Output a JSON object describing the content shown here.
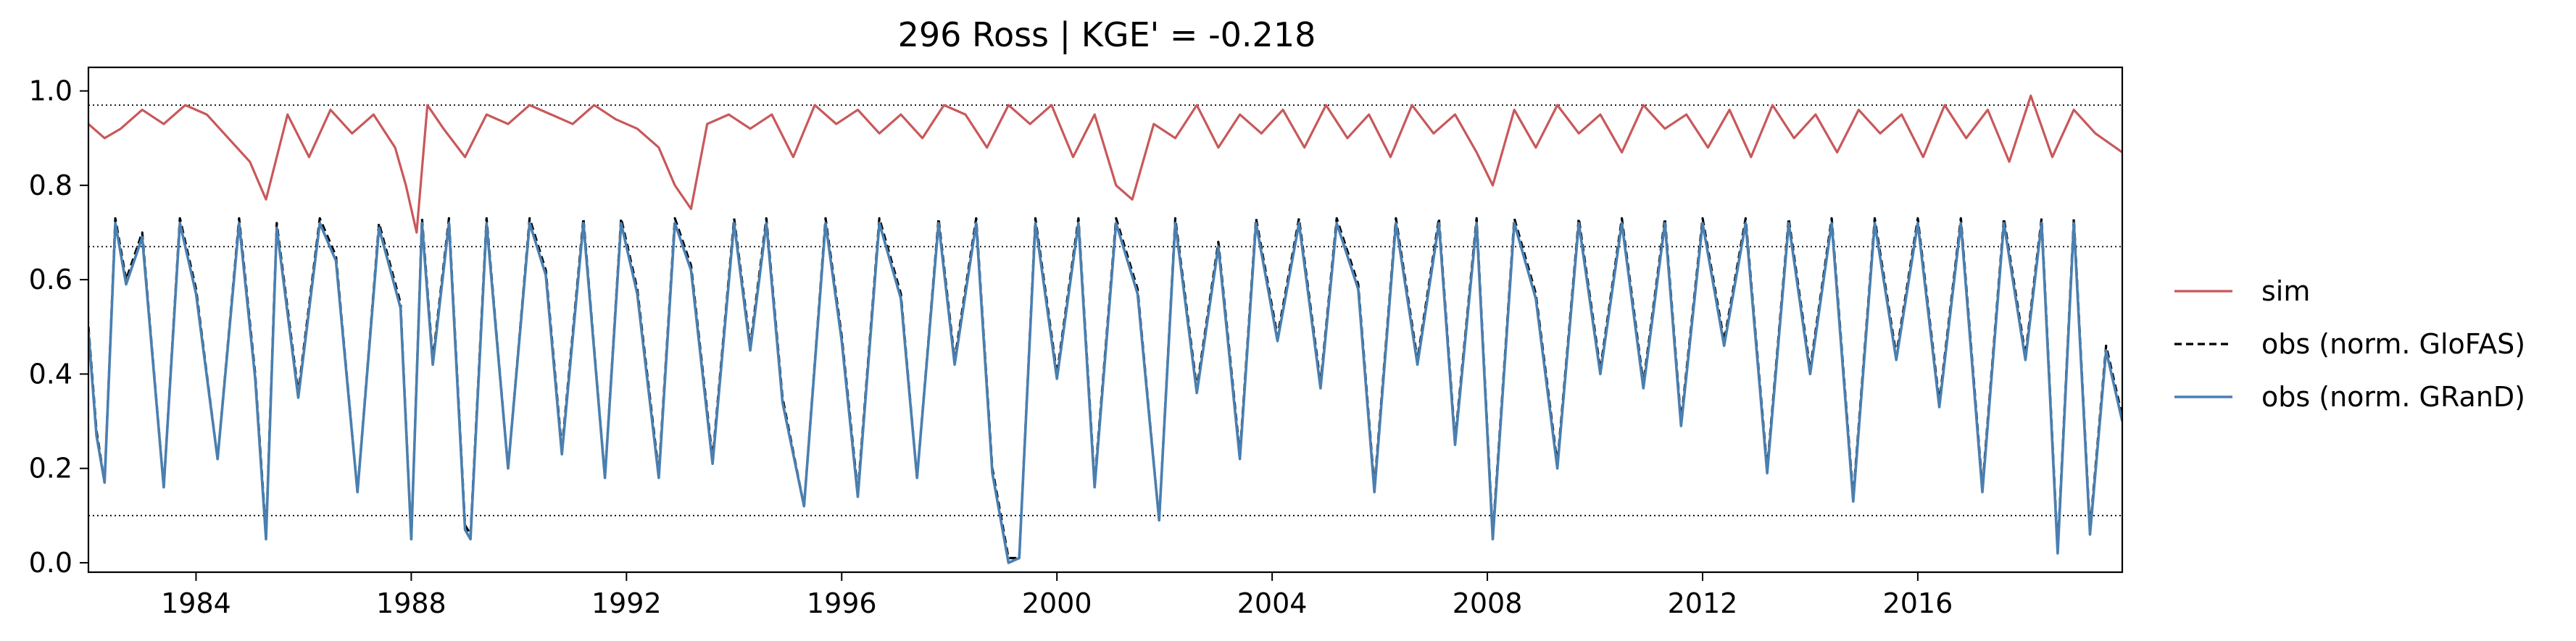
{
  "chart_data": {
    "type": "line",
    "title": "296  Ross | KGE' = -0.218",
    "xlabel": "",
    "ylabel": "",
    "xlim": [
      1982.0,
      2019.8
    ],
    "ylim": [
      -0.02,
      1.05
    ],
    "xticks": [
      1984,
      1988,
      1992,
      1996,
      2000,
      2004,
      2008,
      2012,
      2016
    ],
    "xtick_labels": [
      "1984",
      "1988",
      "1992",
      "1996",
      "2000",
      "2004",
      "2008",
      "2012",
      "2016"
    ],
    "yticks": [
      0.0,
      0.2,
      0.4,
      0.6,
      0.8,
      1.0
    ],
    "ytick_labels": [
      "0.0",
      "0.2",
      "0.4",
      "0.6",
      "0.8",
      "1.0"
    ],
    "grid": false,
    "reference_lines": [
      0.97,
      0.67,
      0.1
    ],
    "legend_position": "right-outside",
    "colors": {
      "sim": "#c8585a",
      "obs_glofas": "#000000",
      "obs_grand": "#4a7fb0"
    },
    "series": [
      {
        "name": "sim",
        "style": "solid",
        "x": [
          1982.0,
          1982.3,
          1982.6,
          1983.0,
          1983.4,
          1983.8,
          1984.2,
          1984.6,
          1985.0,
          1985.3,
          1985.7,
          1986.1,
          1986.5,
          1986.9,
          1987.3,
          1987.7,
          1987.9,
          1988.1,
          1988.3,
          1988.6,
          1989.0,
          1989.4,
          1989.8,
          1990.2,
          1990.6,
          1991.0,
          1991.4,
          1991.8,
          1992.2,
          1992.6,
          1992.9,
          1993.2,
          1993.5,
          1993.9,
          1994.3,
          1994.7,
          1995.1,
          1995.5,
          1995.9,
          1996.3,
          1996.7,
          1997.1,
          1997.5,
          1997.9,
          1998.3,
          1998.7,
          1999.1,
          1999.5,
          1999.9,
          2000.3,
          2000.7,
          2001.1,
          2001.4,
          2001.8,
          2002.2,
          2002.6,
          2003.0,
          2003.4,
          2003.8,
          2004.2,
          2004.6,
          2005.0,
          2005.4,
          2005.8,
          2006.2,
          2006.6,
          2007.0,
          2007.4,
          2007.8,
          2008.1,
          2008.5,
          2008.9,
          2009.3,
          2009.7,
          2010.1,
          2010.5,
          2010.9,
          2011.3,
          2011.7,
          2012.1,
          2012.5,
          2012.9,
          2013.3,
          2013.7,
          2014.1,
          2014.5,
          2014.9,
          2015.3,
          2015.7,
          2016.1,
          2016.5,
          2016.9,
          2017.3,
          2017.7,
          2018.1,
          2018.5,
          2018.9,
          2019.3,
          2019.8
        ],
        "y": [
          0.93,
          0.9,
          0.92,
          0.96,
          0.93,
          0.97,
          0.95,
          0.9,
          0.85,
          0.77,
          0.95,
          0.86,
          0.96,
          0.91,
          0.95,
          0.88,
          0.8,
          0.7,
          0.97,
          0.92,
          0.86,
          0.95,
          0.93,
          0.97,
          0.95,
          0.93,
          0.97,
          0.94,
          0.92,
          0.88,
          0.8,
          0.75,
          0.93,
          0.95,
          0.92,
          0.95,
          0.86,
          0.97,
          0.93,
          0.96,
          0.91,
          0.95,
          0.9,
          0.97,
          0.95,
          0.88,
          0.97,
          0.93,
          0.97,
          0.86,
          0.95,
          0.8,
          0.77,
          0.93,
          0.9,
          0.97,
          0.88,
          0.95,
          0.91,
          0.96,
          0.88,
          0.97,
          0.9,
          0.95,
          0.86,
          0.97,
          0.91,
          0.95,
          0.87,
          0.8,
          0.96,
          0.88,
          0.97,
          0.91,
          0.95,
          0.87,
          0.97,
          0.92,
          0.95,
          0.88,
          0.96,
          0.86,
          0.97,
          0.9,
          0.95,
          0.87,
          0.96,
          0.91,
          0.95,
          0.86,
          0.97,
          0.9,
          0.96,
          0.85,
          0.99,
          0.86,
          0.96,
          0.91,
          0.87
        ]
      },
      {
        "name": "obs (norm. GloFAS)",
        "style": "dashed",
        "x": [
          1982.0,
          1982.15,
          1982.3,
          1982.5,
          1982.7,
          1983.0,
          1983.4,
          1983.7,
          1984.0,
          1984.4,
          1984.8,
          1985.1,
          1985.3,
          1985.5,
          1985.9,
          1986.3,
          1986.6,
          1987.0,
          1987.4,
          1987.8,
          1988.0,
          1988.2,
          1988.4,
          1988.7,
          1989.0,
          1989.1,
          1989.4,
          1989.8,
          1990.2,
          1990.5,
          1990.8,
          1991.2,
          1991.6,
          1991.9,
          1992.2,
          1992.6,
          1992.9,
          1993.2,
          1993.6,
          1994.0,
          1994.3,
          1994.6,
          1994.9,
          1995.3,
          1995.7,
          1996.0,
          1996.3,
          1996.7,
          1997.1,
          1997.4,
          1997.8,
          1998.1,
          1998.5,
          1998.8,
          1999.1,
          1999.3,
          1999.6,
          2000.0,
          2000.4,
          2000.7,
          2001.1,
          2001.5,
          2001.9,
          2002.2,
          2002.6,
          2003.0,
          2003.4,
          2003.7,
          2004.1,
          2004.5,
          2004.9,
          2005.2,
          2005.6,
          2005.9,
          2006.3,
          2006.7,
          2007.1,
          2007.4,
          2007.8,
          2008.1,
          2008.5,
          2008.9,
          2009.3,
          2009.7,
          2010.1,
          2010.5,
          2010.9,
          2011.3,
          2011.6,
          2012.0,
          2012.4,
          2012.8,
          2013.2,
          2013.6,
          2014.0,
          2014.4,
          2014.8,
          2015.2,
          2015.6,
          2016.0,
          2016.4,
          2016.8,
          2017.2,
          2017.6,
          2018.0,
          2018.3,
          2018.6,
          2018.9,
          2019.2,
          2019.5,
          2019.8
        ],
        "y": [
          0.5,
          0.28,
          0.17,
          0.73,
          0.6,
          0.7,
          0.16,
          0.73,
          0.58,
          0.22,
          0.73,
          0.4,
          0.06,
          0.72,
          0.36,
          0.73,
          0.65,
          0.15,
          0.72,
          0.55,
          0.05,
          0.73,
          0.43,
          0.73,
          0.08,
          0.06,
          0.73,
          0.2,
          0.73,
          0.62,
          0.24,
          0.73,
          0.18,
          0.73,
          0.58,
          0.19,
          0.73,
          0.63,
          0.22,
          0.73,
          0.46,
          0.73,
          0.35,
          0.12,
          0.73,
          0.48,
          0.15,
          0.73,
          0.57,
          0.18,
          0.73,
          0.43,
          0.73,
          0.2,
          0.01,
          0.01,
          0.73,
          0.4,
          0.73,
          0.17,
          0.73,
          0.58,
          0.09,
          0.73,
          0.37,
          0.68,
          0.23,
          0.73,
          0.48,
          0.73,
          0.38,
          0.73,
          0.59,
          0.16,
          0.73,
          0.43,
          0.73,
          0.26,
          0.73,
          0.06,
          0.73,
          0.57,
          0.21,
          0.73,
          0.41,
          0.73,
          0.38,
          0.73,
          0.3,
          0.73,
          0.47,
          0.73,
          0.2,
          0.73,
          0.41,
          0.73,
          0.14,
          0.73,
          0.44,
          0.73,
          0.34,
          0.73,
          0.16,
          0.73,
          0.44,
          0.73,
          0.03,
          0.73,
          0.07,
          0.46,
          0.31
        ]
      },
      {
        "name": "obs (norm. GRanD)",
        "style": "solid",
        "x": [
          1982.0,
          1982.15,
          1982.3,
          1982.5,
          1982.7,
          1983.0,
          1983.4,
          1983.7,
          1984.0,
          1984.4,
          1984.8,
          1985.1,
          1985.3,
          1985.5,
          1985.9,
          1986.3,
          1986.6,
          1987.0,
          1987.4,
          1987.8,
          1988.0,
          1988.2,
          1988.4,
          1988.7,
          1989.0,
          1989.1,
          1989.4,
          1989.8,
          1990.2,
          1990.5,
          1990.8,
          1991.2,
          1991.6,
          1991.9,
          1992.2,
          1992.6,
          1992.9,
          1993.2,
          1993.6,
          1994.0,
          1994.3,
          1994.6,
          1994.9,
          1995.3,
          1995.7,
          1996.0,
          1996.3,
          1996.7,
          1997.1,
          1997.4,
          1997.8,
          1998.1,
          1998.5,
          1998.8,
          1999.1,
          1999.3,
          1999.6,
          2000.0,
          2000.4,
          2000.7,
          2001.1,
          2001.5,
          2001.9,
          2002.2,
          2002.6,
          2003.0,
          2003.4,
          2003.7,
          2004.1,
          2004.5,
          2004.9,
          2005.2,
          2005.6,
          2005.9,
          2006.3,
          2006.7,
          2007.1,
          2007.4,
          2007.8,
          2008.1,
          2008.5,
          2008.9,
          2009.3,
          2009.7,
          2010.1,
          2010.5,
          2010.9,
          2011.3,
          2011.6,
          2012.0,
          2012.4,
          2012.8,
          2013.2,
          2013.6,
          2014.0,
          2014.4,
          2014.8,
          2015.2,
          2015.6,
          2016.0,
          2016.4,
          2016.8,
          2017.2,
          2017.6,
          2018.0,
          2018.3,
          2018.6,
          2018.9,
          2019.2,
          2019.5,
          2019.8
        ],
        "y": [
          0.49,
          0.27,
          0.17,
          0.72,
          0.59,
          0.69,
          0.16,
          0.72,
          0.57,
          0.22,
          0.72,
          0.39,
          0.05,
          0.71,
          0.35,
          0.72,
          0.64,
          0.15,
          0.71,
          0.54,
          0.05,
          0.72,
          0.42,
          0.72,
          0.07,
          0.05,
          0.72,
          0.2,
          0.72,
          0.61,
          0.23,
          0.72,
          0.18,
          0.72,
          0.57,
          0.18,
          0.72,
          0.62,
          0.21,
          0.72,
          0.45,
          0.72,
          0.34,
          0.12,
          0.72,
          0.47,
          0.14,
          0.72,
          0.56,
          0.18,
          0.72,
          0.42,
          0.72,
          0.19,
          0.0,
          0.01,
          0.72,
          0.39,
          0.72,
          0.16,
          0.72,
          0.57,
          0.09,
          0.72,
          0.36,
          0.67,
          0.22,
          0.72,
          0.47,
          0.72,
          0.37,
          0.72,
          0.58,
          0.15,
          0.72,
          0.42,
          0.72,
          0.25,
          0.72,
          0.05,
          0.72,
          0.56,
          0.2,
          0.72,
          0.4,
          0.72,
          0.37,
          0.72,
          0.29,
          0.72,
          0.46,
          0.72,
          0.19,
          0.72,
          0.4,
          0.72,
          0.13,
          0.72,
          0.43,
          0.72,
          0.33,
          0.72,
          0.15,
          0.72,
          0.43,
          0.72,
          0.02,
          0.72,
          0.06,
          0.45,
          0.3
        ]
      }
    ]
  }
}
